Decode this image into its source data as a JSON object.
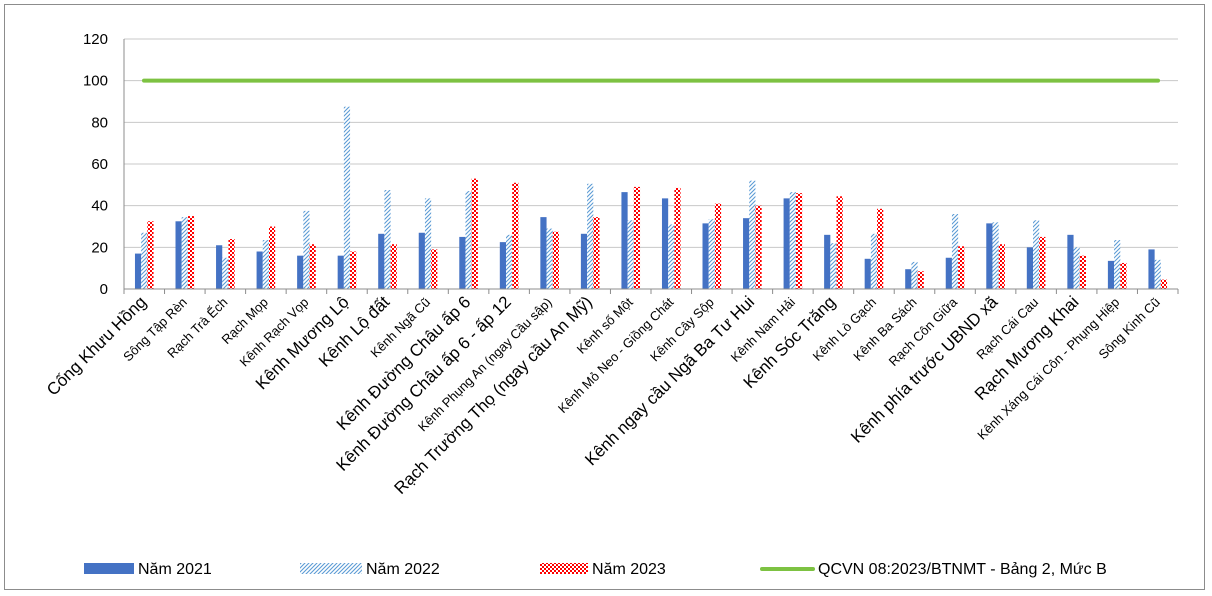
{
  "chart_data": {
    "type": "bar",
    "title": "",
    "xlabel": "",
    "ylabel": "",
    "ylim": [
      0,
      120
    ],
    "yticks": [
      0,
      20,
      40,
      60,
      80,
      100,
      120
    ],
    "grid": true,
    "legend_position": "bottom",
    "categories": [
      "Cống Khưu Hồng",
      "Sông Tập Rèn",
      "Rạch Trà Ếch",
      "Rạch Mọp",
      "Kênh Rạch Vọp",
      "Kênh Mương Lộ",
      "Kênh Lộ đất",
      "Kênh Ngã Cũ",
      "Kênh Đường Châu ấp 6",
      "Kênh Đường Châu ấp 6 - ấp 12",
      "Kênh Phụng An (ngay Cầu sập)",
      "Rạch Trường Thọ (ngay cầu An Mỹ)",
      "Kênh số Một",
      "Kênh Mỏ Neo - Giồng Chát",
      "Kênh Cây Sộp",
      "Kênh ngay cầu Ngã Ba Tư Hui",
      "Kênh Nam Hải",
      "Kênh Sóc Trăng",
      "Kênh Lò Gạch",
      "Kênh Ba Sách",
      "Rạch Côn Giữa",
      "Kênh phía trước UBND xã",
      "Rạch Cái Cau",
      "Rạch Mương Khai",
      "Kênh Xáng Cái Côn - Phụng Hiệp",
      "Sông Kinh Cũ"
    ],
    "series": [
      {
        "name": "Năm 2021",
        "color": "#4472c4",
        "pattern": "solid",
        "values": [
          17,
          32.5,
          21,
          18,
          16,
          16,
          26.5,
          27,
          25,
          22.5,
          34.5,
          26.5,
          46.5,
          43.5,
          31.5,
          34,
          43.5,
          26,
          14.5,
          9.5,
          15,
          31.5,
          20,
          26,
          13.5,
          19
        ]
      },
      {
        "name": "Năm 2022",
        "color": "#5b9bd5",
        "pattern": "diagonal",
        "values": [
          27,
          34.5,
          15,
          23.5,
          37.5,
          87.5,
          47.5,
          43.5,
          47,
          26,
          29,
          50.5,
          33,
          31,
          33.5,
          52,
          46.5,
          22,
          26.5,
          13,
          36,
          32,
          33,
          20,
          23.5,
          14
        ]
      },
      {
        "name": "Năm 2023",
        "color": "#ff0000",
        "pattern": "checker",
        "values": [
          32.5,
          35,
          24,
          30,
          21.5,
          18,
          21.5,
          19,
          53,
          51,
          27.5,
          34.5,
          49,
          48.5,
          41,
          40,
          46,
          44.5,
          38.5,
          8.5,
          20.5,
          21.5,
          25,
          16,
          12.5,
          4.5
        ]
      }
    ],
    "reference_line": {
      "name": "QCVN 08:2023/BTNMT - Bảng 2, Mức B",
      "value": 100,
      "color": "#7dc242"
    }
  }
}
